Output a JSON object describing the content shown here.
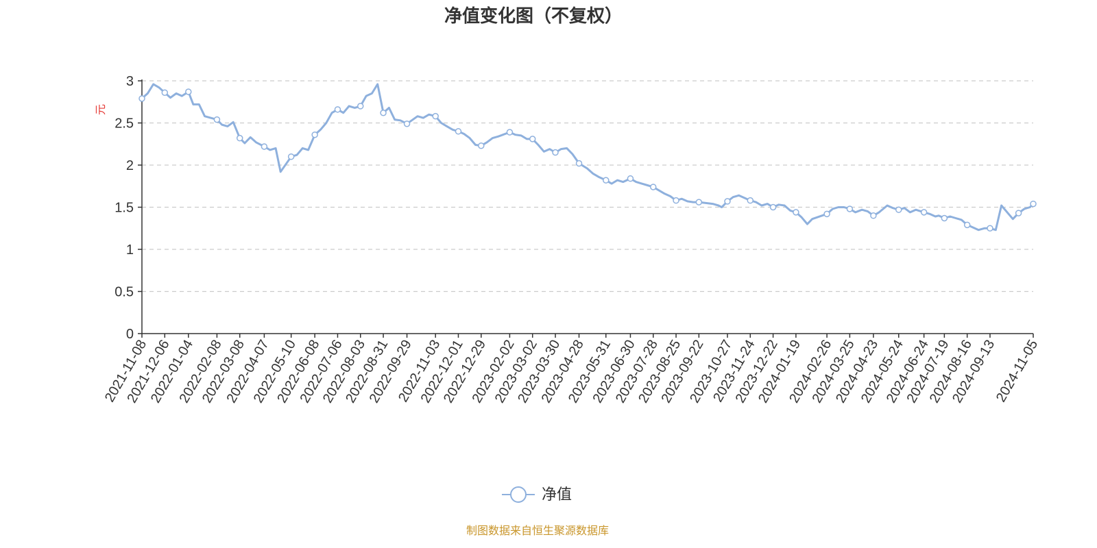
{
  "chart_data": {
    "type": "line",
    "title": "净值变化图（不复权）",
    "ylabel": "元",
    "ylim": [
      0,
      3
    ],
    "yticks": [
      "0",
      "0.5",
      "1",
      "1.5",
      "2",
      "2.5",
      "3"
    ],
    "xticks": [
      "2021-11-08",
      "2021-12-06",
      "2022-01-04",
      "2022-02-08",
      "2022-03-08",
      "2022-04-07",
      "2022-05-10",
      "2022-06-08",
      "2022-07-06",
      "2022-08-03",
      "2022-08-31",
      "2022-09-29",
      "2022-11-03",
      "2022-12-01",
      "2022-12-29",
      "2023-02-02",
      "2023-03-02",
      "2023-03-30",
      "2023-04-28",
      "2023-05-31",
      "2023-06-30",
      "2023-07-28",
      "2023-08-25",
      "2023-09-22",
      "2023-10-27",
      "2023-11-24",
      "2023-12-22",
      "2024-01-19",
      "2024-02-26",
      "2024-03-25",
      "2024-04-23",
      "2024-05-24",
      "2024-06-24",
      "2024-07-19",
      "2024-08-16",
      "2024-09-13",
      "2024-11-05"
    ],
    "grid": true,
    "legend_position": "bottom-center",
    "line_color": "#8eb0dd",
    "series": [
      {
        "name": "净值",
        "x": [
          "2021-11-08",
          "2021-11-15",
          "2021-11-22",
          "2021-11-29",
          "2021-12-06",
          "2021-12-13",
          "2021-12-20",
          "2021-12-27",
          "2022-01-04",
          "2022-01-10",
          "2022-01-17",
          "2022-01-24",
          "2022-02-08",
          "2022-02-14",
          "2022-02-21",
          "2022-02-28",
          "2022-03-08",
          "2022-03-14",
          "2022-03-21",
          "2022-03-28",
          "2022-04-07",
          "2022-04-14",
          "2022-04-21",
          "2022-04-27",
          "2022-05-10",
          "2022-05-17",
          "2022-05-24",
          "2022-05-31",
          "2022-06-08",
          "2022-06-15",
          "2022-06-22",
          "2022-06-29",
          "2022-07-06",
          "2022-07-13",
          "2022-07-20",
          "2022-07-27",
          "2022-08-03",
          "2022-08-10",
          "2022-08-17",
          "2022-08-24",
          "2022-08-31",
          "2022-09-07",
          "2022-09-14",
          "2022-09-21",
          "2022-09-29",
          "2022-10-12",
          "2022-10-19",
          "2022-10-26",
          "2022-11-03",
          "2022-11-10",
          "2022-11-17",
          "2022-11-24",
          "2022-12-01",
          "2022-12-08",
          "2022-12-15",
          "2022-12-22",
          "2022-12-29",
          "2023-01-05",
          "2023-01-12",
          "2023-01-19",
          "2023-02-02",
          "2023-02-09",
          "2023-02-16",
          "2023-02-23",
          "2023-03-02",
          "2023-03-09",
          "2023-03-16",
          "2023-03-23",
          "2023-03-30",
          "2023-04-06",
          "2023-04-13",
          "2023-04-20",
          "2023-04-28",
          "2023-05-08",
          "2023-05-15",
          "2023-05-22",
          "2023-05-31",
          "2023-06-07",
          "2023-06-14",
          "2023-06-21",
          "2023-06-30",
          "2023-07-07",
          "2023-07-14",
          "2023-07-21",
          "2023-07-28",
          "2023-08-04",
          "2023-08-11",
          "2023-08-18",
          "2023-08-25",
          "2023-09-01",
          "2023-09-08",
          "2023-09-15",
          "2023-09-22",
          "2023-10-09",
          "2023-10-16",
          "2023-10-20",
          "2023-10-27",
          "2023-11-03",
          "2023-11-10",
          "2023-11-17",
          "2023-11-24",
          "2023-12-01",
          "2023-12-08",
          "2023-12-15",
          "2023-12-22",
          "2023-12-29",
          "2024-01-05",
          "2024-01-12",
          "2024-01-19",
          "2024-01-26",
          "2024-02-02",
          "2024-02-08",
          "2024-02-26",
          "2024-03-04",
          "2024-03-11",
          "2024-03-18",
          "2024-03-25",
          "2024-04-01",
          "2024-04-09",
          "2024-04-16",
          "2024-04-23",
          "2024-04-30",
          "2024-05-10",
          "2024-05-17",
          "2024-05-24",
          "2024-05-31",
          "2024-06-07",
          "2024-06-14",
          "2024-06-24",
          "2024-07-01",
          "2024-07-08",
          "2024-07-12",
          "2024-07-19",
          "2024-07-26",
          "2024-08-02",
          "2024-08-09",
          "2024-08-16",
          "2024-08-23",
          "2024-08-30",
          "2024-09-06",
          "2024-09-13",
          "2024-09-20",
          "2024-09-27",
          "2024-10-11",
          "2024-10-18",
          "2024-10-25",
          "2024-11-01",
          "2024-11-05"
        ],
        "values": [
          2.79,
          2.85,
          2.96,
          2.92,
          2.86,
          2.8,
          2.85,
          2.82,
          2.87,
          2.72,
          2.72,
          2.58,
          2.54,
          2.48,
          2.46,
          2.51,
          2.32,
          2.26,
          2.33,
          2.27,
          2.22,
          2.18,
          2.2,
          1.92,
          2.1,
          2.12,
          2.2,
          2.18,
          2.36,
          2.42,
          2.5,
          2.62,
          2.66,
          2.62,
          2.7,
          2.68,
          2.7,
          2.82,
          2.85,
          2.96,
          2.62,
          2.68,
          2.54,
          2.53,
          2.49,
          2.58,
          2.56,
          2.6,
          2.58,
          2.5,
          2.46,
          2.42,
          2.4,
          2.37,
          2.32,
          2.24,
          2.23,
          2.27,
          2.32,
          2.34,
          2.39,
          2.36,
          2.35,
          2.31,
          2.31,
          2.24,
          2.16,
          2.19,
          2.15,
          2.19,
          2.2,
          2.13,
          2.02,
          1.96,
          1.9,
          1.86,
          1.82,
          1.78,
          1.82,
          1.8,
          1.84,
          1.8,
          1.78,
          1.76,
          1.74,
          1.7,
          1.66,
          1.63,
          1.58,
          1.6,
          1.57,
          1.56,
          1.56,
          1.54,
          1.52,
          1.5,
          1.57,
          1.62,
          1.64,
          1.61,
          1.58,
          1.56,
          1.52,
          1.54,
          1.5,
          1.53,
          1.52,
          1.46,
          1.44,
          1.38,
          1.3,
          1.36,
          1.42,
          1.48,
          1.5,
          1.5,
          1.48,
          1.44,
          1.47,
          1.45,
          1.4,
          1.44,
          1.52,
          1.49,
          1.47,
          1.49,
          1.44,
          1.47,
          1.44,
          1.42,
          1.39,
          1.4,
          1.37,
          1.39,
          1.37,
          1.35,
          1.29,
          1.26,
          1.23,
          1.25,
          1.25,
          1.23,
          1.52,
          1.36,
          1.43,
          1.48,
          1.5,
          1.54
        ]
      }
    ]
  },
  "legend": {
    "label": "净值"
  },
  "source_note": "制图数据来自恒生聚源数据库"
}
